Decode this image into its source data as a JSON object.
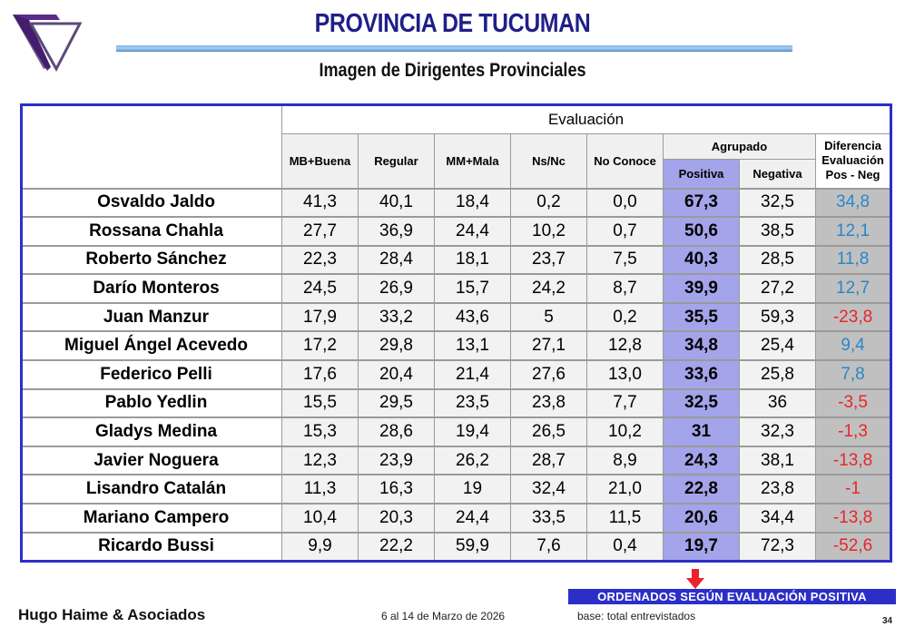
{
  "header": {
    "title": "PROVINCIA DE TUCUMAN",
    "subtitle": "Imagen de Dirigentes Provinciales",
    "logo_icon": "triangle-logo-icon"
  },
  "table": {
    "group_header": "Evaluación",
    "columns": {
      "mb_buena": "MB+Buena",
      "regular": "Regular",
      "mm_mala": "MM+Mala",
      "ns_nc": "Ns/Nc",
      "no_conoce": "No Conoce",
      "agrupado": "Agrupado",
      "positiva": "Positiva",
      "negativa": "Negativa",
      "diferencia_1": "Diferencia",
      "diferencia_2": "Evaluación",
      "diferencia_3": "Pos - Neg"
    },
    "rows": [
      {
        "name": "Osvaldo Jaldo",
        "mb_buena": "41,3",
        "regular": "40,1",
        "mm_mala": "18,4",
        "ns_nc": "0,2",
        "no_conoce": "0,0",
        "positiva": "67,3",
        "negativa": "32,5",
        "diferencia": "34,8",
        "sign": "positive"
      },
      {
        "name": "Rossana Chahla",
        "mb_buena": "27,7",
        "regular": "36,9",
        "mm_mala": "24,4",
        "ns_nc": "10,2",
        "no_conoce": "0,7",
        "positiva": "50,6",
        "negativa": "38,5",
        "diferencia": "12,1",
        "sign": "positive"
      },
      {
        "name": "Roberto Sánchez",
        "mb_buena": "22,3",
        "regular": "28,4",
        "mm_mala": "18,1",
        "ns_nc": "23,7",
        "no_conoce": "7,5",
        "positiva": "40,3",
        "negativa": "28,5",
        "diferencia": "11,8",
        "sign": "positive"
      },
      {
        "name": "Darío Monteros",
        "mb_buena": "24,5",
        "regular": "26,9",
        "mm_mala": "15,7",
        "ns_nc": "24,2",
        "no_conoce": "8,7",
        "positiva": "39,9",
        "negativa": "27,2",
        "diferencia": "12,7",
        "sign": "positive"
      },
      {
        "name": "Juan Manzur",
        "mb_buena": "17,9",
        "regular": "33,2",
        "mm_mala": "43,6",
        "ns_nc": "5",
        "no_conoce": "0,2",
        "positiva": "35,5",
        "negativa": "59,3",
        "diferencia": "-23,8",
        "sign": "negative"
      },
      {
        "name": "Miguel Ángel Acevedo",
        "mb_buena": "17,2",
        "regular": "29,8",
        "mm_mala": "13,1",
        "ns_nc": "27,1",
        "no_conoce": "12,8",
        "positiva": "34,8",
        "negativa": "25,4",
        "diferencia": "9,4",
        "sign": "positive"
      },
      {
        "name": "Federico Pelli",
        "mb_buena": "17,6",
        "regular": "20,4",
        "mm_mala": "21,4",
        "ns_nc": "27,6",
        "no_conoce": "13,0",
        "positiva": "33,6",
        "negativa": "25,8",
        "diferencia": "7,8",
        "sign": "positive"
      },
      {
        "name": "Pablo Yedlin",
        "mb_buena": "15,5",
        "regular": "29,5",
        "mm_mala": "23,5",
        "ns_nc": "23,8",
        "no_conoce": "7,7",
        "positiva": "32,5",
        "negativa": "36",
        "diferencia": "-3,5",
        "sign": "negative"
      },
      {
        "name": "Gladys Medina",
        "mb_buena": "15,3",
        "regular": "28,6",
        "mm_mala": "19,4",
        "ns_nc": "26,5",
        "no_conoce": "10,2",
        "positiva": "31",
        "negativa": "32,3",
        "diferencia": "-1,3",
        "sign": "negative"
      },
      {
        "name": "Javier Noguera",
        "mb_buena": "12,3",
        "regular": "23,9",
        "mm_mala": "26,2",
        "ns_nc": "28,7",
        "no_conoce": "8,9",
        "positiva": "24,3",
        "negativa": "38,1",
        "diferencia": "-13,8",
        "sign": "negative"
      },
      {
        "name": "Lisandro Catalán",
        "mb_buena": "11,3",
        "regular": "16,3",
        "mm_mala": "19",
        "ns_nc": "32,4",
        "no_conoce": "21,0",
        "positiva": "22,8",
        "negativa": "23,8",
        "diferencia": "-1",
        "sign": "negative"
      },
      {
        "name": "Mariano Campero",
        "mb_buena": "10,4",
        "regular": "20,3",
        "mm_mala": "24,4",
        "ns_nc": "33,5",
        "no_conoce": "11,5",
        "positiva": "20,6",
        "negativa": "34,4",
        "diferencia": "-13,8",
        "sign": "negative"
      },
      {
        "name": "Ricardo Bussi",
        "mb_buena": "9,9",
        "regular": "22,2",
        "mm_mala": "59,9",
        "ns_nc": "7,6",
        "no_conoce": "0,4",
        "positiva": "19,7",
        "negativa": "72,3",
        "diferencia": "-52,6",
        "sign": "negative"
      }
    ]
  },
  "footer": {
    "sort_note": "ORDENADOS SEGÚN  EVALUACIÓN  POSITIVA",
    "arrow_icon": "down-arrow-icon",
    "company": "Hugo Haime & Asociados",
    "date": "6 al 14 de Marzo de 2026",
    "base": "base: total entrevistados",
    "page_number": "34"
  },
  "colors": {
    "title": "#1f1f8a",
    "accent_blue": "#2b2fc8",
    "positive_column": "#a4a4ea",
    "diff_column": "#c0c0c0",
    "positive_value": "#2a86c8",
    "negative_value": "#e8252a",
    "arrow": "#e8252a"
  }
}
